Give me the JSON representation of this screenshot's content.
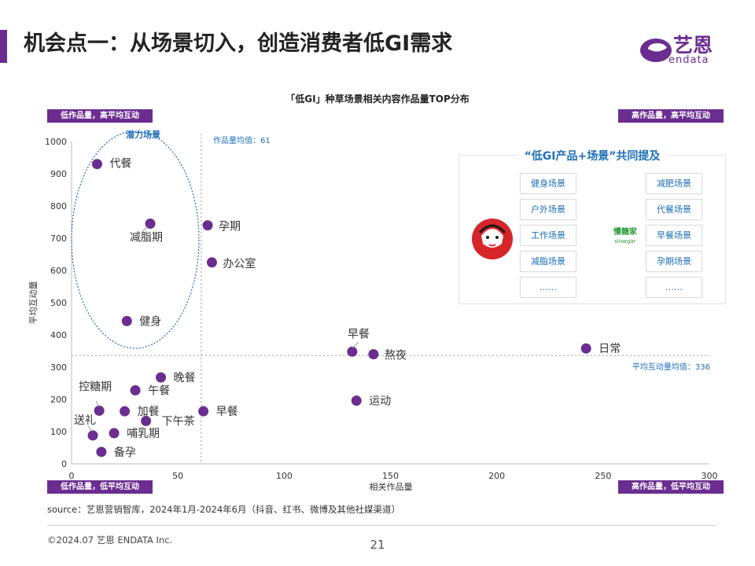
{
  "header": {
    "title": "机会点一：从场景切入，创造消费者低GI需求",
    "logo_cn": "艺恩",
    "logo_en": "endata",
    "accent_color": "#6b2d8f"
  },
  "quadrants": {
    "top_left": "低作品量，高平均互动",
    "top_right": "高作品量，高平均互动",
    "bottom_left": "低作品量，低平均互动",
    "bottom_right": "高作品量，低平均互动"
  },
  "annotation": {
    "title": "“低GI产品+场景”共同提及",
    "left_scenes": [
      "健身场景",
      "户外场景",
      "工作场景",
      "减脂场景",
      "……"
    ],
    "right_scenes": [
      "减肥场景",
      "代餐场景",
      "早餐场景",
      "孕期场景",
      "……"
    ],
    "right_brand_cn": "慢糖家",
    "right_brand_en": "slowgar"
  },
  "chart_data": {
    "type": "scatter",
    "title": "「低GI」种草场景相关内容作品量TOP分布",
    "xlabel": "相关作品量",
    "ylabel": "平均互动量",
    "xlim": [
      0,
      300
    ],
    "ylim": [
      0,
      1000
    ],
    "xticks": [
      0,
      50,
      100,
      150,
      200,
      250,
      300
    ],
    "yticks": [
      0,
      100,
      200,
      300,
      400,
      500,
      600,
      700,
      800,
      900,
      1000
    ],
    "point_color": "#6b2d8f",
    "points": [
      {
        "label": "代餐",
        "x": 12,
        "y": 930
      },
      {
        "label": "减脂期",
        "x": 37,
        "y": 745
      },
      {
        "label": "孕期",
        "x": 64,
        "y": 740
      },
      {
        "label": "办公室",
        "x": 66,
        "y": 625
      },
      {
        "label": "健身",
        "x": 26,
        "y": 443
      },
      {
        "label": "早餐",
        "x": 132,
        "y": 348
      },
      {
        "label": "熬夜",
        "x": 142,
        "y": 340
      },
      {
        "label": "日常",
        "x": 242,
        "y": 358
      },
      {
        "label": "晚餐",
        "x": 42,
        "y": 268
      },
      {
        "label": "午餐",
        "x": 30,
        "y": 228
      },
      {
        "label": "控糖期",
        "x": 13,
        "y": 165
      },
      {
        "label": "加餐",
        "x": 25,
        "y": 163
      },
      {
        "label": "下午茶",
        "x": 35,
        "y": 133
      },
      {
        "label": "早餐",
        "x": 62,
        "y": 163
      },
      {
        "label": "运动",
        "x": 134,
        "y": 196
      },
      {
        "label": "送礼",
        "x": 10,
        "y": 88
      },
      {
        "label": "哺乳期",
        "x": 20,
        "y": 95
      },
      {
        "label": "备孕",
        "x": 14,
        "y": 37
      }
    ],
    "reference_lines": {
      "x_mean": 61,
      "x_mean_label": "作品量均值：61",
      "y_mean": 336,
      "y_mean_label": "平均互动量均值：336"
    },
    "highlight": {
      "label": "潜力场景",
      "color": "#1d6fb8"
    }
  },
  "footer": {
    "source": "source：艺恩营销智库，2024年1月-2024年6月（抖音、红书、微博及其他社媒渠道）",
    "copyright": "©2024.07  艺恩 ENDATA Inc.",
    "page": "21"
  }
}
